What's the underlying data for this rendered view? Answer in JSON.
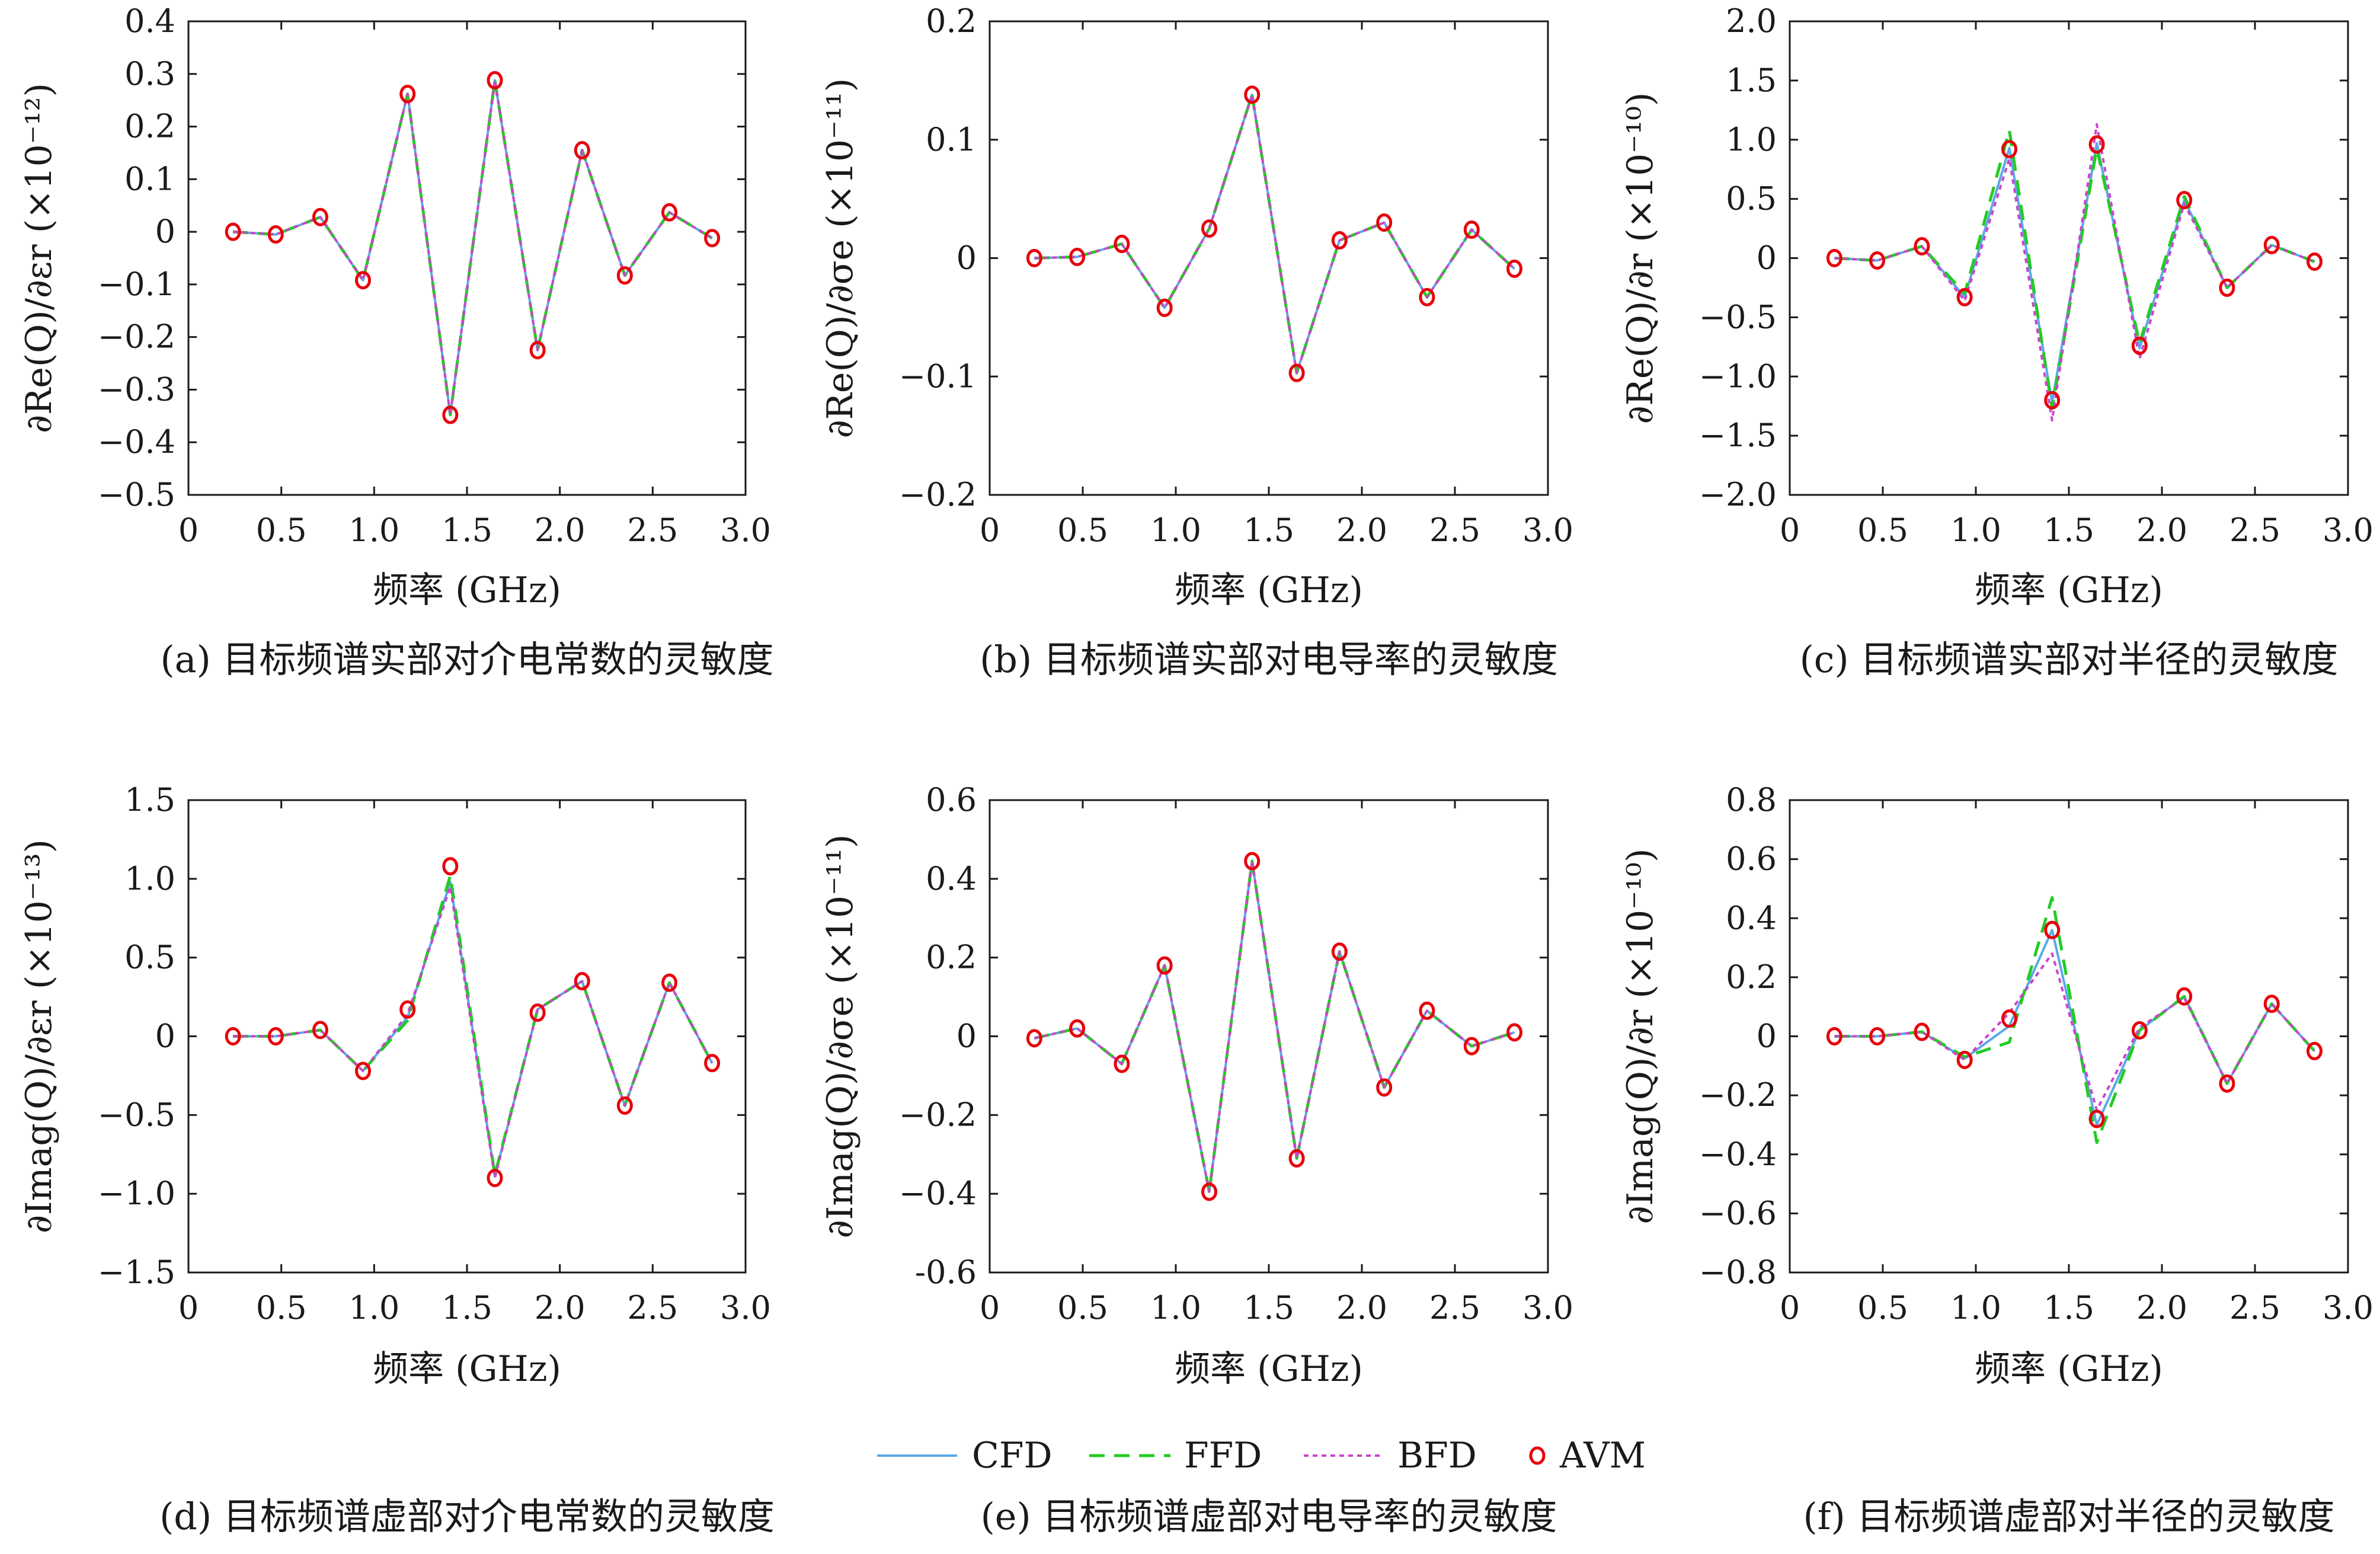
{
  "legend": {
    "cfd": "CFD",
    "ffd": "FFD",
    "bfd": "BFD",
    "avm": "AVM"
  },
  "colors": {
    "CFD": "#5aa9e6",
    "FFD": "#22cc22",
    "BFD": "#cc44cc",
    "AVM": "#e8000b",
    "axis": "#1a1a1a"
  },
  "chart_data": [
    {
      "type": "line",
      "caption": "(a) 目标频谱实部对介电常数的灵敏度",
      "xlabel": "频率 (GHz)",
      "ylabel": "∂Re(Q)/∂εr (×10⁻¹²)",
      "xlim": [
        0,
        3.0
      ],
      "ylim": [
        -0.5,
        0.4
      ],
      "xticks": [
        0,
        0.5,
        1.0,
        1.5,
        2.0,
        2.5,
        3.0
      ],
      "xtick_labels": [
        "0",
        "0.5",
        "1.0",
        "1.5",
        "2.0",
        "2.5",
        "3.0"
      ],
      "yticks": [
        0.4,
        0.3,
        0.2,
        0.1,
        0,
        -0.1,
        -0.2,
        -0.3,
        -0.4,
        -0.5
      ],
      "ytick_labels": [
        "0.4",
        "0.3",
        "0.2",
        "0.1",
        "0",
        "−0.1",
        "−0.2",
        "−0.3",
        "−0.4",
        "−0.5"
      ],
      "x": [
        0.24,
        0.47,
        0.71,
        0.94,
        1.18,
        1.41,
        1.65,
        1.88,
        2.12,
        2.35,
        2.59,
        2.82
      ],
      "series": [
        {
          "name": "CFD",
          "values": [
            0.0,
            -0.005,
            0.028,
            -0.092,
            0.262,
            -0.348,
            0.288,
            -0.225,
            0.155,
            -0.083,
            0.037,
            -0.012
          ]
        },
        {
          "name": "FFD",
          "values": [
            0.0,
            -0.005,
            0.028,
            -0.092,
            0.262,
            -0.348,
            0.288,
            -0.225,
            0.155,
            -0.083,
            0.037,
            -0.012
          ]
        },
        {
          "name": "BFD",
          "values": [
            0.0,
            -0.005,
            0.028,
            -0.092,
            0.262,
            -0.348,
            0.288,
            -0.225,
            0.155,
            -0.083,
            0.037,
            -0.012
          ]
        },
        {
          "name": "AVM",
          "values": [
            0.0,
            -0.005,
            0.028,
            -0.092,
            0.262,
            -0.348,
            0.288,
            -0.225,
            0.155,
            -0.083,
            0.037,
            -0.012
          ]
        }
      ]
    },
    {
      "type": "line",
      "caption": "(b) 目标频谱实部对电导率的灵敏度",
      "xlabel": "频率 (GHz)",
      "ylabel": "∂Re(Q)/∂σe (×10⁻¹¹)",
      "xlim": [
        0,
        3.0
      ],
      "ylim": [
        -0.2,
        0.2
      ],
      "xticks": [
        0,
        0.5,
        1.0,
        1.5,
        2.0,
        2.5,
        3.0
      ],
      "xtick_labels": [
        "0",
        "0.5",
        "1.0",
        "1.5",
        "2.0",
        "2.5",
        "3.0"
      ],
      "yticks": [
        0.2,
        0.1,
        0,
        -0.1,
        -0.2
      ],
      "ytick_labels": [
        "0.2",
        "0.1",
        "0",
        "−0.1",
        "−0.2"
      ],
      "x": [
        0.24,
        0.47,
        0.71,
        0.94,
        1.18,
        1.41,
        1.65,
        1.88,
        2.12,
        2.35,
        2.59,
        2.82
      ],
      "series": [
        {
          "name": "CFD",
          "values": [
            0.0,
            0.001,
            0.012,
            -0.042,
            0.025,
            0.138,
            -0.097,
            0.015,
            0.03,
            -0.033,
            0.024,
            -0.009
          ]
        },
        {
          "name": "FFD",
          "values": [
            0.0,
            0.001,
            0.012,
            -0.042,
            0.025,
            0.138,
            -0.097,
            0.015,
            0.03,
            -0.033,
            0.024,
            -0.009
          ]
        },
        {
          "name": "BFD",
          "values": [
            0.0,
            0.001,
            0.012,
            -0.042,
            0.025,
            0.138,
            -0.097,
            0.015,
            0.03,
            -0.033,
            0.024,
            -0.009
          ]
        },
        {
          "name": "AVM",
          "values": [
            0.0,
            0.001,
            0.012,
            -0.042,
            0.025,
            0.138,
            -0.097,
            0.015,
            0.03,
            -0.033,
            0.024,
            -0.009
          ]
        }
      ]
    },
    {
      "type": "line",
      "caption": "(c) 目标频谱实部对半径的灵敏度",
      "xlabel": "频率 (GHz)",
      "ylabel": "∂Re(Q)/∂r (×10⁻¹⁰)",
      "xlim": [
        0,
        3.0
      ],
      "ylim": [
        -2.0,
        2.0
      ],
      "xticks": [
        0,
        0.5,
        1.0,
        1.5,
        2.0,
        2.5,
        3.0
      ],
      "xtick_labels": [
        "0",
        "0.5",
        "1.0",
        "1.5",
        "2.0",
        "2.5",
        "3.0"
      ],
      "yticks": [
        2.0,
        1.5,
        1.0,
        0.5,
        0,
        -0.5,
        -1.0,
        -1.5,
        -2.0
      ],
      "ytick_labels": [
        "2.0",
        "1.5",
        "1.0",
        "0.5",
        "0",
        "−0.5",
        "−1.0",
        "−1.5",
        "−2.0"
      ],
      "x": [
        0.24,
        0.47,
        0.71,
        0.94,
        1.18,
        1.41,
        1.65,
        1.88,
        2.12,
        2.35,
        2.59,
        2.82
      ],
      "series": [
        {
          "name": "CFD",
          "values": [
            0.0,
            -0.02,
            0.1,
            -0.33,
            0.93,
            -1.22,
            0.97,
            -0.76,
            0.49,
            -0.25,
            0.11,
            -0.03
          ]
        },
        {
          "name": "FFD",
          "values": [
            0.0,
            -0.02,
            0.1,
            -0.3,
            1.08,
            -1.27,
            0.93,
            -0.72,
            0.52,
            -0.25,
            0.11,
            -0.03
          ]
        },
        {
          "name": "BFD",
          "values": [
            0.0,
            -0.02,
            0.1,
            -0.36,
            0.84,
            -1.37,
            1.13,
            -0.85,
            0.46,
            -0.25,
            0.11,
            -0.03
          ]
        },
        {
          "name": "AVM",
          "values": [
            0.0,
            -0.02,
            0.1,
            -0.33,
            0.92,
            -1.2,
            0.96,
            -0.74,
            0.49,
            -0.25,
            0.11,
            -0.03
          ]
        }
      ]
    },
    {
      "type": "line",
      "caption": "(d) 目标频谱虚部对介电常数的灵敏度",
      "xlabel": "频率 (GHz)",
      "ylabel": "∂Imag(Q)/∂εr (×10⁻¹³)",
      "xlim": [
        0,
        3.0
      ],
      "ylim": [
        -1.5,
        1.5
      ],
      "xticks": [
        0,
        0.5,
        1.0,
        1.5,
        2.0,
        2.5,
        3.0
      ],
      "xtick_labels": [
        "0",
        "0.5",
        "1.0",
        "1.5",
        "2.0",
        "2.5",
        "3.0"
      ],
      "yticks": [
        1.5,
        1.0,
        0.5,
        0,
        -0.5,
        -1.0,
        -1.5
      ],
      "ytick_labels": [
        "1.5",
        "1.0",
        "0.5",
        "0",
        "−0.5",
        "−1.0",
        "−1.5"
      ],
      "x": [
        0.24,
        0.47,
        0.71,
        0.94,
        1.18,
        1.41,
        1.65,
        1.88,
        2.12,
        2.35,
        2.59,
        2.82
      ],
      "series": [
        {
          "name": "CFD",
          "values": [
            0.0,
            0.0,
            0.04,
            -0.22,
            0.12,
            0.98,
            -0.89,
            0.17,
            0.35,
            -0.44,
            0.34,
            -0.17
          ]
        },
        {
          "name": "FFD",
          "values": [
            0.0,
            0.0,
            0.04,
            -0.22,
            0.1,
            1.02,
            -0.88,
            0.17,
            0.35,
            -0.44,
            0.34,
            -0.17
          ]
        },
        {
          "name": "BFD",
          "values": [
            0.0,
            0.0,
            0.04,
            -0.22,
            0.14,
            0.95,
            -0.9,
            0.17,
            0.35,
            -0.44,
            0.34,
            -0.17
          ]
        },
        {
          "name": "AVM",
          "values": [
            0.0,
            0.0,
            0.04,
            -0.22,
            0.17,
            1.08,
            -0.9,
            0.15,
            0.35,
            -0.44,
            0.34,
            -0.17
          ]
        }
      ]
    },
    {
      "type": "line",
      "caption": "(e) 目标频谱虚部对电导率的灵敏度",
      "xlabel": "频率 (GHz)",
      "ylabel": "∂Imag(Q)/∂σe (×10⁻¹¹)",
      "xlim": [
        0,
        3.0
      ],
      "ylim": [
        -0.6,
        0.6
      ],
      "xticks": [
        0,
        0.5,
        1.0,
        1.5,
        2.0,
        2.5,
        3.0
      ],
      "xtick_labels": [
        "0",
        "0.5",
        "1.0",
        "1.5",
        "2.0",
        "2.5",
        "3.0"
      ],
      "yticks": [
        0.6,
        0.4,
        0.2,
        0,
        -0.2,
        -0.4,
        -0.6
      ],
      "ytick_labels": [
        "0.6",
        "0.4",
        "0.2",
        "0",
        "−0.2",
        "−0.4",
        "-0.6"
      ],
      "x": [
        0.24,
        0.47,
        0.71,
        0.94,
        1.18,
        1.41,
        1.65,
        1.88,
        2.12,
        2.35,
        2.59,
        2.82
      ],
      "series": [
        {
          "name": "CFD",
          "values": [
            -0.005,
            0.02,
            -0.07,
            0.18,
            -0.395,
            0.445,
            -0.31,
            0.215,
            -0.13,
            0.065,
            -0.025,
            0.01
          ]
        },
        {
          "name": "FFD",
          "values": [
            -0.005,
            0.02,
            -0.07,
            0.18,
            -0.395,
            0.445,
            -0.31,
            0.215,
            -0.13,
            0.065,
            -0.025,
            0.01
          ]
        },
        {
          "name": "BFD",
          "values": [
            -0.005,
            0.02,
            -0.07,
            0.18,
            -0.395,
            0.445,
            -0.31,
            0.215,
            -0.13,
            0.065,
            -0.025,
            0.01
          ]
        },
        {
          "name": "AVM",
          "values": [
            -0.005,
            0.02,
            -0.07,
            0.18,
            -0.395,
            0.445,
            -0.31,
            0.215,
            -0.13,
            0.065,
            -0.025,
            0.01
          ]
        }
      ]
    },
    {
      "type": "line",
      "caption": "(f) 目标频谱虚部对半径的灵敏度",
      "xlabel": "频率 (GHz)",
      "ylabel": "∂Imag(Q)/∂r (×10⁻¹⁰)",
      "xlim": [
        0,
        3.0
      ],
      "ylim": [
        -0.8,
        0.8
      ],
      "xticks": [
        0,
        0.5,
        1.0,
        1.5,
        2.0,
        2.5,
        3.0
      ],
      "xtick_labels": [
        "0",
        "0.5",
        "1.0",
        "1.5",
        "2.0",
        "2.5",
        "3.0"
      ],
      "yticks": [
        0.8,
        0.6,
        0.4,
        0.2,
        0,
        -0.2,
        -0.4,
        -0.6,
        -0.8
      ],
      "ytick_labels": [
        "0.8",
        "0.6",
        "0.4",
        "0.2",
        "0",
        "−0.2",
        "−0.4",
        "−0.6",
        "−0.8"
      ],
      "x": [
        0.24,
        0.47,
        0.71,
        0.94,
        1.18,
        1.41,
        1.65,
        1.88,
        2.12,
        2.35,
        2.59,
        2.82
      ],
      "series": [
        {
          "name": "CFD",
          "values": [
            0.0,
            0.0,
            0.015,
            -0.075,
            0.035,
            0.36,
            -0.3,
            0.02,
            0.135,
            -0.16,
            0.11,
            -0.05
          ]
        },
        {
          "name": "FFD",
          "values": [
            0.0,
            0.0,
            0.015,
            -0.07,
            -0.02,
            0.47,
            -0.36,
            0.02,
            0.135,
            -0.16,
            0.11,
            -0.05
          ]
        },
        {
          "name": "BFD",
          "values": [
            0.0,
            0.0,
            0.015,
            -0.08,
            0.08,
            0.28,
            -0.25,
            0.03,
            0.13,
            -0.16,
            0.11,
            -0.05
          ]
        },
        {
          "name": "AVM",
          "values": [
            0.0,
            0.0,
            0.015,
            -0.08,
            0.06,
            0.36,
            -0.28,
            0.02,
            0.135,
            -0.16,
            0.11,
            -0.05
          ]
        }
      ]
    }
  ]
}
